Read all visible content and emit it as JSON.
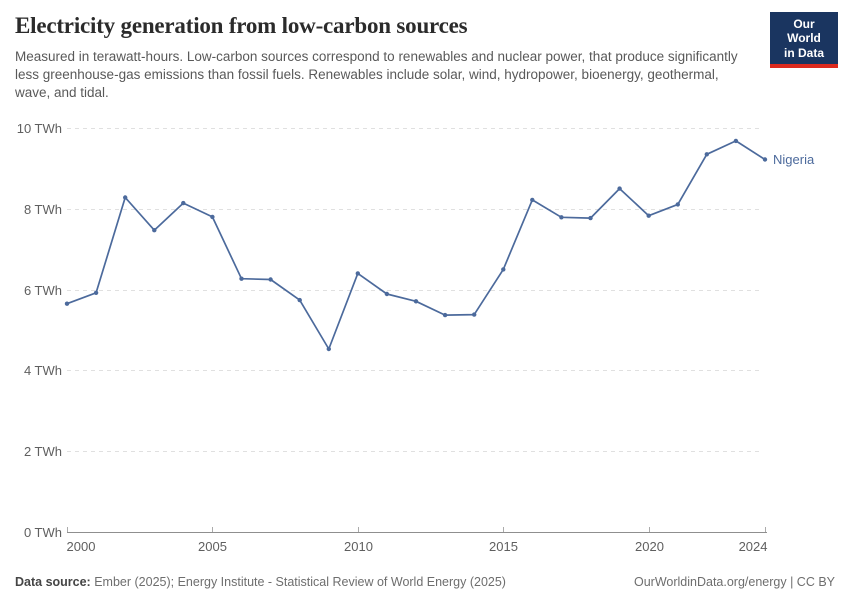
{
  "header": {
    "title": "Electricity generation from low-carbon sources",
    "subtitle": "Measured in terawatt-hours. Low-carbon sources correspond to renewables and nuclear power, that produce significantly less greenhouse-gas emissions than fossil fuels. Renewables include solar, wind, hydropower, bioenergy, geothermal, wave, and tidal.",
    "logo": {
      "line1": "Our World",
      "line2": "in Data"
    }
  },
  "chart_data": {
    "type": "line",
    "title": "Electricity generation from low-carbon sources",
    "xlabel": "",
    "ylabel": "",
    "unit": "TWh",
    "x": [
      2000,
      2001,
      2002,
      2003,
      2004,
      2005,
      2006,
      2007,
      2008,
      2009,
      2010,
      2011,
      2012,
      2013,
      2014,
      2015,
      2016,
      2017,
      2018,
      2019,
      2020,
      2021,
      2022,
      2023,
      2024
    ],
    "series": [
      {
        "name": "Nigeria",
        "color": "#4c6a9c",
        "values": [
          5.65,
          5.92,
          8.28,
          7.47,
          8.14,
          7.8,
          6.27,
          6.25,
          5.74,
          4.53,
          6.4,
          5.89,
          5.71,
          5.37,
          5.38,
          6.5,
          8.22,
          7.79,
          7.77,
          8.5,
          7.83,
          8.11,
          9.35,
          9.68,
          9.22
        ]
      }
    ],
    "xlim": [
      2000,
      2024
    ],
    "ylim": [
      0,
      10
    ],
    "yticks": [
      {
        "value": 0,
        "label": "0 TWh"
      },
      {
        "value": 2,
        "label": "2 TWh"
      },
      {
        "value": 4,
        "label": "4 TWh"
      },
      {
        "value": 6,
        "label": "6 TWh"
      },
      {
        "value": 8,
        "label": "8 TWh"
      },
      {
        "value": 10,
        "label": "10 TWh"
      }
    ],
    "xticks": [
      {
        "value": 2000,
        "label": "2000"
      },
      {
        "value": 2005,
        "label": "2005"
      },
      {
        "value": 2010,
        "label": "2010"
      },
      {
        "value": 2015,
        "label": "2015"
      },
      {
        "value": 2020,
        "label": "2020"
      },
      {
        "value": 2024,
        "label": "2024"
      }
    ],
    "grid": "horizontal-dashed",
    "legend": "end-label",
    "end_label": "Nigeria"
  },
  "footer": {
    "source_label": "Data source:",
    "source_text": "Ember (2025); Energy Institute - Statistical Review of World Energy (2025)",
    "link_text": "OurWorldinData.org/energy | CC BY"
  },
  "colors": {
    "series": "#4c6a9c",
    "grid": "#e0e0e0",
    "axis": "#8f8f8f",
    "tick_text": "#5f5f5f",
    "logo_bg": "#1a3560",
    "logo_underline": "#dc2a1e"
  }
}
